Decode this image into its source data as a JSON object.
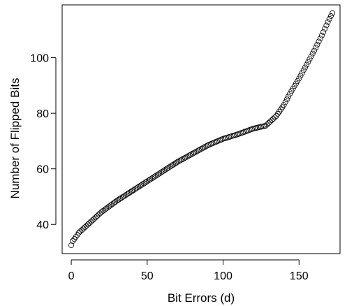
{
  "chart_data": {
    "type": "scatter",
    "title": "",
    "xlabel": "Bit Errors (d)",
    "ylabel": "Number of Flipped Bits",
    "xlim": [
      -6,
      177
    ],
    "ylim": [
      29.5,
      119
    ],
    "xticks": [
      0,
      50,
      100,
      150
    ],
    "yticks": [
      40,
      60,
      80,
      100
    ],
    "grid": false,
    "legend": "none",
    "marker": "open-circle",
    "colors": {
      "points": "#000000",
      "axes": "#000000",
      "background": "#ffffff"
    },
    "curve_anchors": [
      [
        0,
        32.5
      ],
      [
        1,
        34
      ],
      [
        5,
        37
      ],
      [
        10,
        39.5
      ],
      [
        20,
        44.5
      ],
      [
        30,
        48.5
      ],
      [
        40,
        52
      ],
      [
        50,
        55.5
      ],
      [
        60,
        59
      ],
      [
        70,
        62.5
      ],
      [
        80,
        65.5
      ],
      [
        90,
        68.5
      ],
      [
        100,
        70.8
      ],
      [
        110,
        72.5
      ],
      [
        120,
        74.5
      ],
      [
        128,
        75.5
      ],
      [
        135,
        79
      ],
      [
        140,
        83
      ],
      [
        145,
        88
      ],
      [
        150,
        92.5
      ],
      [
        155,
        97.5
      ],
      [
        160,
        102.5
      ],
      [
        165,
        108
      ],
      [
        170,
        114
      ],
      [
        172,
        116
      ]
    ]
  }
}
